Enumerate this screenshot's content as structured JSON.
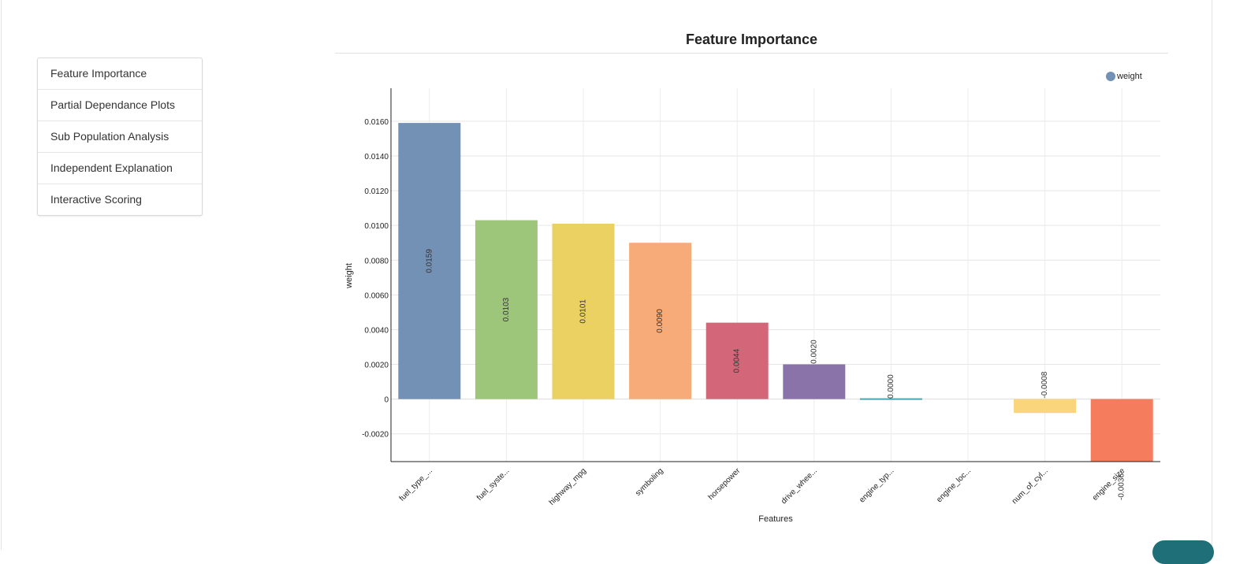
{
  "nav": {
    "items": [
      {
        "label": "Feature Importance"
      },
      {
        "label": "Partial Dependance Plots"
      },
      {
        "label": "Sub Population Analysis"
      },
      {
        "label": "Independent Explanation"
      },
      {
        "label": "Interactive Scoring"
      }
    ]
  },
  "chart_data": {
    "type": "bar",
    "title": "Feature Importance",
    "xlabel": "Features",
    "ylabel": "weight",
    "legend": {
      "entries": [
        "weight"
      ],
      "position": "top-right"
    },
    "categories": [
      "fuel_type_...",
      "fuel_syste...",
      "highway_mpg",
      "symboling",
      "horsepower",
      "drive_whee...",
      "engine_typ...",
      "engine_loc...",
      "num_of_cyl...",
      "engine_size"
    ],
    "values": [
      0.0159,
      0.0103,
      0.0101,
      0.009,
      0.0044,
      0.002,
      0.0,
      null,
      -0.0008,
      -0.0036
    ],
    "value_labels": [
      "0.0159",
      "0.0103",
      "0.0101",
      "0.0090",
      "0.0044",
      "0.0020",
      "0.0000",
      "",
      "-0.0008",
      "-0.0036"
    ],
    "colors": [
      "#7390b5",
      "#9ec67a",
      "#ead162",
      "#f7ab78",
      "#d4667a",
      "#8a73a8",
      "#4aa3b5",
      "#cccccc",
      "#fad57b",
      "#f57c5c"
    ],
    "legend_color": "#7390b5",
    "y_ticks": [
      -0.002,
      0,
      0.002,
      0.004,
      0.006,
      0.008,
      0.01,
      0.012,
      0.014,
      0.016
    ],
    "y_tick_labels": [
      "-0.0020",
      "0",
      "0.0020",
      "0.0040",
      "0.0060",
      "0.0080",
      "0.0100",
      "0.0120",
      "0.0140",
      "0.0160"
    ],
    "ylim": [
      -0.0036,
      0.0179
    ],
    "grid": true
  }
}
